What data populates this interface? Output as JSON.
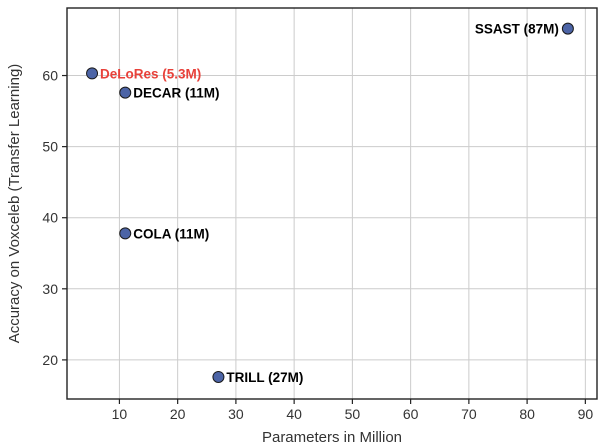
{
  "chart_data": {
    "type": "scatter",
    "title": "",
    "xlabel": "Parameters in Million",
    "ylabel": "Accuracy on Voxceleb (Transfer Learning)",
    "xlim": [
      1,
      92
    ],
    "ylim": [
      14.5,
      69.5
    ],
    "xticks": [
      10,
      20,
      30,
      40,
      50,
      60,
      70,
      80,
      90
    ],
    "yticks": [
      20,
      30,
      40,
      50,
      60
    ],
    "grid": true,
    "marker_color": "#4c64a6",
    "marker_edge_color": "#1a1a1a",
    "points": [
      {
        "label": "DeLoRes (5.3M)",
        "x": 5.3,
        "y": 60.3,
        "label_color": "#e8413a",
        "label_side": "right"
      },
      {
        "label": "DECAR (11M)",
        "x": 11,
        "y": 57.6,
        "label_color": "#000000",
        "label_side": "right"
      },
      {
        "label": "COLA (11M)",
        "x": 11,
        "y": 37.8,
        "label_color": "#000000",
        "label_side": "right"
      },
      {
        "label": "TRILL (27M)",
        "x": 27,
        "y": 17.6,
        "label_color": "#000000",
        "label_side": "right"
      },
      {
        "label": "SSAST (87M)",
        "x": 87,
        "y": 66.6,
        "label_color": "#000000",
        "label_side": "left"
      }
    ]
  }
}
